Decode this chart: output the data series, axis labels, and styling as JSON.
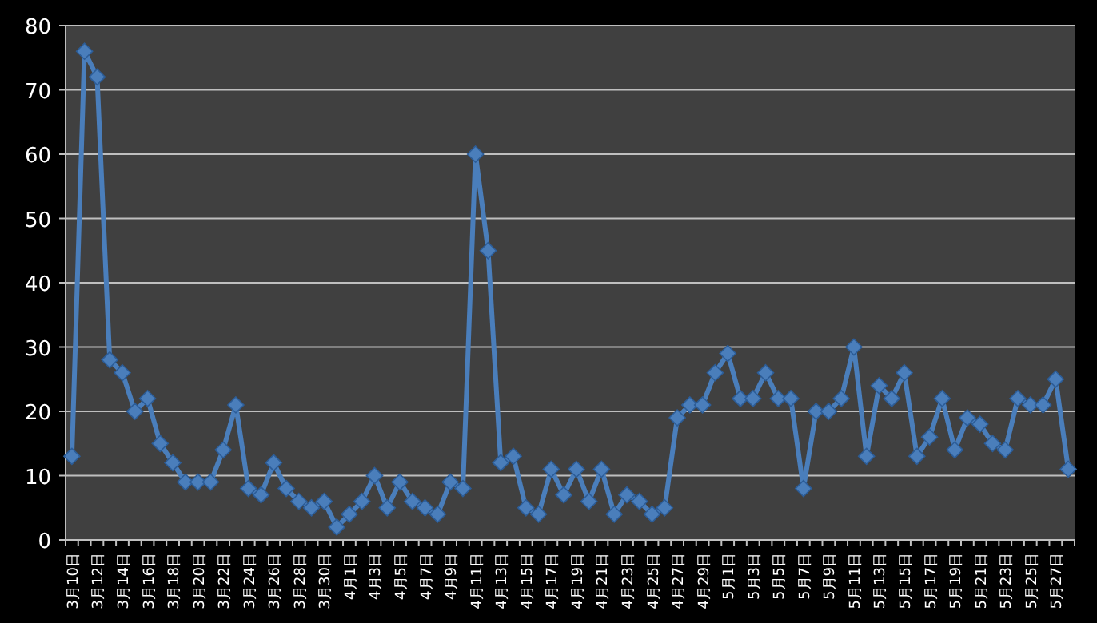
{
  "chart_data": {
    "type": "line",
    "categories": [
      "3月10日",
      null,
      "3月12日",
      null,
      "3月14日",
      null,
      "3月16日",
      null,
      "3月18日",
      null,
      "3月20日",
      null,
      "3月22日",
      null,
      "3月24日",
      null,
      "3月26日",
      null,
      "3月28日",
      null,
      "3月30日",
      null,
      "4月1日",
      null,
      "4月3日",
      null,
      "4月5日",
      null,
      "4月7日",
      null,
      "4月9日",
      null,
      "4月11日",
      null,
      "4月13日",
      null,
      "4月15日",
      null,
      "4月17日",
      null,
      "4月19日",
      null,
      "4月21日",
      null,
      "4月23日",
      null,
      "4月25日",
      null,
      "4月27日",
      null,
      "4月29日",
      null,
      "5月1日",
      null,
      "5月3日",
      null,
      "5月5日",
      null,
      "5月7日",
      null,
      "5月9日",
      null,
      "5月11日",
      null,
      "5月13日",
      null,
      "5月15日",
      null,
      "5月17日",
      null,
      "5月19日",
      null,
      "5月21日",
      null,
      "5月23日",
      null,
      "5月25日",
      null,
      "5月27日",
      null
    ],
    "series": [
      {
        "color": "#4a7ebb",
        "values": [
          13,
          76,
          72,
          28,
          26,
          20,
          22,
          15,
          12,
          9,
          9,
          9,
          14,
          21,
          8,
          7,
          12,
          8,
          6,
          5,
          6,
          2,
          4,
          6,
          10,
          5,
          9,
          6,
          5,
          4,
          9,
          8,
          60,
          45,
          12,
          13,
          5,
          4,
          11,
          7,
          11,
          6,
          11,
          4,
          7,
          6,
          4,
          5,
          19,
          21,
          21,
          26,
          29,
          22,
          22,
          26,
          22,
          22,
          8,
          20,
          20,
          22,
          30,
          13,
          24,
          22,
          26,
          13,
          16,
          22,
          14,
          19,
          18,
          15,
          14,
          22,
          21,
          21,
          25,
          11
        ]
      }
    ],
    "ylim": [
      0,
      80
    ],
    "yticks": [
      0,
      10,
      20,
      30,
      40,
      50,
      60,
      70,
      80
    ],
    "grid": "y",
    "marker": "diamond",
    "line_style": "solid"
  }
}
